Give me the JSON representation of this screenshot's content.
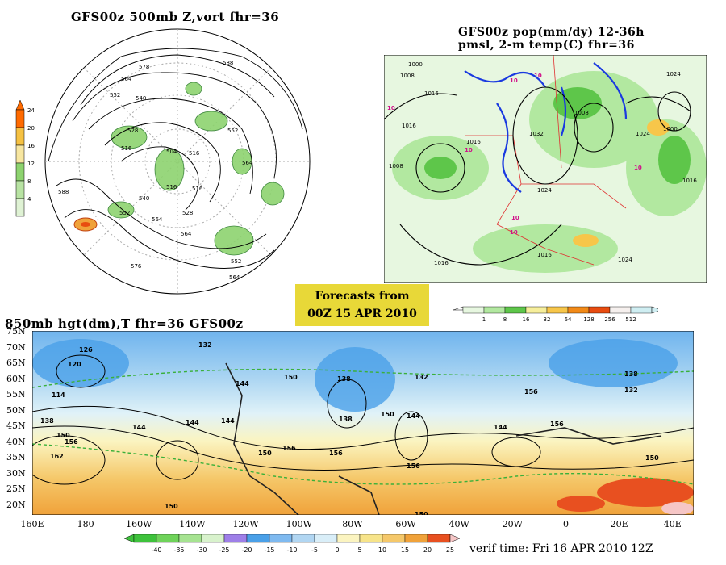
{
  "panel1": {
    "title": "GFS00z   500mb  Z,vort     fhr=36",
    "contour_labels": [
      "578",
      "588",
      "564",
      "552",
      "540",
      "528",
      "516",
      "504",
      "516",
      "564",
      "552",
      "588",
      "540",
      "552",
      "564",
      "528",
      "516",
      "564",
      "576",
      "516",
      "552",
      "564"
    ],
    "colorbar": {
      "ticks": [
        "24",
        "20",
        "16",
        "12",
        "8",
        "4"
      ],
      "colors": [
        "#ff6a00",
        "#f5c142",
        "#f7e6a0",
        "#8dd36f",
        "#b8e3a3",
        "#dff2d4"
      ]
    }
  },
  "panel2": {
    "title_line1": "GFS00z pop(mm/dy) 12-36h",
    "title_line2": "pmsl, 2-m temp(C)  fhr=36",
    "isobar_labels": [
      "1000",
      "1008",
      "1016",
      "1024",
      "1032",
      "1016",
      "1008",
      "1024",
      "1000",
      "1016",
      "1024",
      "1016",
      "1008",
      "1016",
      "1016",
      "1024"
    ],
    "temp_labels": [
      "10",
      "10",
      "10",
      "10",
      "10",
      "10",
      "10"
    ],
    "colorbar": {
      "ticks": [
        "1",
        "8",
        "16",
        "32",
        "64",
        "128",
        "256",
        "512"
      ],
      "colors": [
        "#e7f7e0",
        "#b2e8a0",
        "#5ec64a",
        "#f6ee9b",
        "#f7c64a",
        "#f28a18",
        "#e84c10",
        "#f6f0ee",
        "#cfeef2"
      ]
    }
  },
  "forecast_box": {
    "line1": "Forecasts from",
    "line2": "00Z 15 APR 2010"
  },
  "panel3": {
    "title": "850mb hgt(dm),T  fhr=36 GFS00z",
    "lat_labels": [
      "75N",
      "70N",
      "65N",
      "60N",
      "55N",
      "50N",
      "45N",
      "40N",
      "35N",
      "30N",
      "25N",
      "20N"
    ],
    "lon_labels": [
      "160E",
      "180",
      "160W",
      "140W",
      "120W",
      "100W",
      "80W",
      "60W",
      "40W",
      "20W",
      "0",
      "20E",
      "40E"
    ],
    "contour_labels": [
      "126",
      "120",
      "114",
      "132",
      "138",
      "144",
      "150",
      "156",
      "162",
      "144",
      "138",
      "150",
      "156",
      "132",
      "144",
      "138",
      "150",
      "156",
      "144",
      "150",
      "156",
      "144",
      "156",
      "138",
      "150",
      "132",
      "150",
      "156",
      "144",
      "150"
    ],
    "colorbar": {
      "ticks": [
        "-40",
        "-35",
        "-30",
        "-25",
        "-20",
        "-15",
        "-10",
        "-5",
        "0",
        "5",
        "10",
        "15",
        "20",
        "25"
      ],
      "colors": [
        "#3ec23c",
        "#6fd35a",
        "#a6e391",
        "#d8f2cc",
        "#9e7fe8",
        "#4aa0e8",
        "#7fbaf0",
        "#b1d6f2",
        "#d9eef8",
        "#fbf4c0",
        "#f7e48a",
        "#f5c86a",
        "#f0a23a",
        "#e85020"
      ]
    }
  },
  "verif_time": "verif time: Fri 16 APR 2010 12Z"
}
